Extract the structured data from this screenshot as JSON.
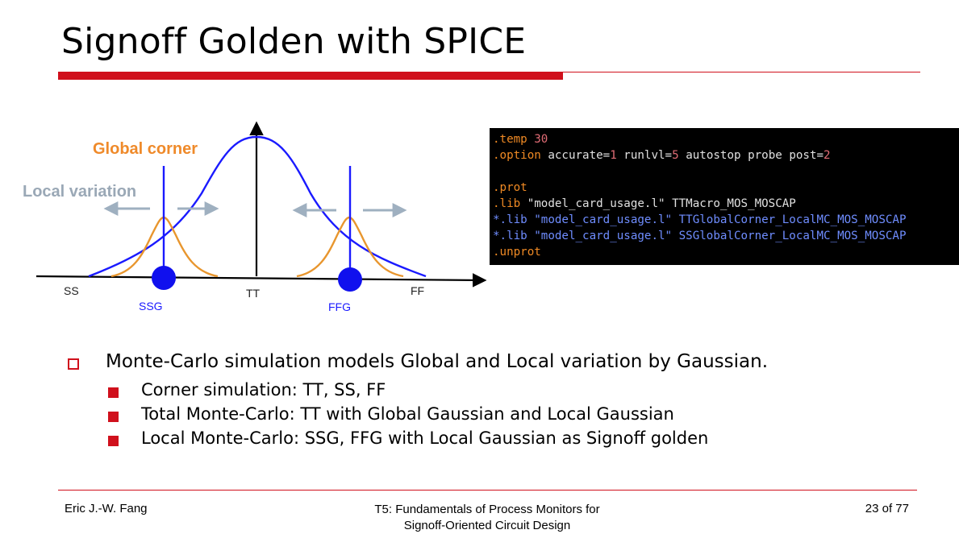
{
  "slide": {
    "title": "Signoff Golden with SPICE"
  },
  "diagram": {
    "global_label": "Global corner",
    "local_label": "Local variation",
    "tick_ss": "SS",
    "tick_tt": "TT",
    "tick_ff": "FF",
    "tick_ssg": "SSG",
    "tick_ffg": "FFG",
    "colors": {
      "global_curve": "#1a1aff",
      "local_curve": "#e8962e",
      "global_label": "#ef8a2a",
      "local_label": "#9aa8b6",
      "arrow": "#9fb0c0",
      "marker": "#1010ee"
    }
  },
  "code": {
    "lines": [
      [
        {
          "t": ".temp",
          "c": "dot"
        },
        {
          "t": " ",
          "c": "txt"
        },
        {
          "t": "30",
          "c": "num"
        }
      ],
      [
        {
          "t": ".option",
          "c": "dot"
        },
        {
          "t": " accurate=",
          "c": "txt"
        },
        {
          "t": "1",
          "c": "num"
        },
        {
          "t": " runlvl=",
          "c": "txt"
        },
        {
          "t": "5",
          "c": "num"
        },
        {
          "t": " autostop probe post=",
          "c": "txt"
        },
        {
          "t": "2",
          "c": "num"
        }
      ],
      [],
      [
        {
          "t": ".prot",
          "c": "dot"
        }
      ],
      [
        {
          "t": ".lib",
          "c": "dot"
        },
        {
          "t": " \"model_card_usage.l\" TTMacro_MOS_MOSCAP",
          "c": "txt"
        }
      ],
      [
        {
          "t": "*.lib \"model_card_usage.l\" TTGlobalCorner_LocalMC_MOS_MOSCAP",
          "c": "comment"
        }
      ],
      [
        {
          "t": "*.lib \"model_card_usage.l\" SSGlobalCorner_LocalMC_MOS_MOSCAP",
          "c": "comment"
        }
      ],
      [
        {
          "t": ".unprot",
          "c": "dot"
        }
      ]
    ]
  },
  "bullets": {
    "main": "Monte-Carlo simulation models Global and Local variation by Gaussian.",
    "sub": [
      "Corner simulation: TT, SS, FF",
      "Total Monte-Carlo: TT with Global Gaussian and Local Gaussian",
      "Local Monte-Carlo: SSG, FFG with Local Gaussian as Signoff golden"
    ]
  },
  "footer": {
    "author": "Eric J.-W. Fang",
    "session_line1": "T5: Fundamentals of Process Monitors for",
    "session_line2": "Signoff-Oriented Circuit Design",
    "page": "23 of 77"
  }
}
